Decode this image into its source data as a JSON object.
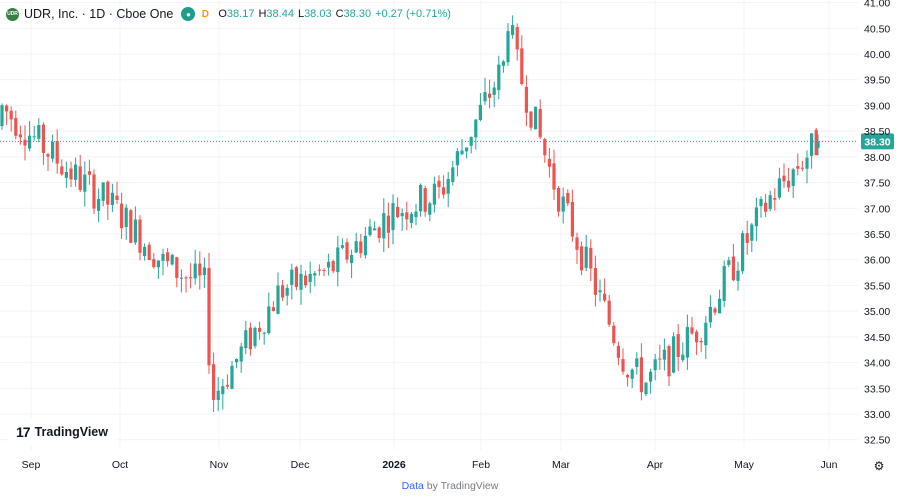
{
  "header": {
    "logo_text": "UDR",
    "title": "UDR, Inc. · 1D · Cboe One",
    "d_badge": "D",
    "o_label": "O",
    "o_value": "38.17",
    "h_label": "H",
    "h_value": "38.44",
    "l_label": "L",
    "l_value": "38.03",
    "c_label": "C",
    "c_value": "38.30",
    "change": "+0.27 (+0.71%)"
  },
  "brand": {
    "mark": "17",
    "name": "TradingView"
  },
  "footer": {
    "data_label": "Data",
    "by_label": "by TradingView"
  },
  "colors": {
    "up": "#26a69a",
    "down": "#ef5350",
    "last_price": "#26a69a",
    "text": "#131722",
    "grid": "#f0f3fa"
  },
  "icons": {
    "settings": "gear-icon",
    "visibility": "eye-icon"
  },
  "chart_data": {
    "type": "candlestick",
    "symbol": "UDR, Inc.",
    "interval": "1D",
    "exchange": "Cboe One",
    "last_price": 38.3,
    "last_price_label": "38.30",
    "y_ticks": [
      "32.50",
      "33.00",
      "33.50",
      "34.00",
      "34.50",
      "35.00",
      "35.50",
      "36.00",
      "36.50",
      "37.00",
      "37.50",
      "38.00",
      "38.50",
      "39.00",
      "39.50",
      "40.00",
      "40.50",
      "41.00"
    ],
    "ylim": [
      32.3,
      41.05
    ],
    "grid": true,
    "x_ticks": [
      "Sep",
      "Oct",
      "Nov",
      "Dec",
      "2026",
      "Feb",
      "Mar",
      "Apr",
      "May",
      "Jun"
    ],
    "monthly_waypoints": [
      {
        "period": "Aug 2025 (end)",
        "close": 39.0
      },
      {
        "period": "Sep 2025 (mid)",
        "close": 37.7
      },
      {
        "period": "Sep 2025 (end)",
        "close": 37.0
      },
      {
        "period": "Oct 2025 (mid)",
        "close": 35.9
      },
      {
        "period": "Oct 2025 (end)",
        "close": 35.5
      },
      {
        "period": "Nov 2025 (start low)",
        "close": 33.3
      },
      {
        "period": "Nov 2025 (end)",
        "close": 35.4
      },
      {
        "period": "Dec 2025 (mid)",
        "close": 35.8
      },
      {
        "period": "Dec 2025 (end)",
        "close": 36.9
      },
      {
        "period": "Jan 2026 (mid)",
        "close": 37.3
      },
      {
        "period": "Feb 2026 (peak)",
        "close": 40.1
      },
      {
        "period": "Feb 2026 (end)",
        "close": 37.6
      },
      {
        "period": "Mar 2026 (end)",
        "close": 34.0
      },
      {
        "period": "Apr 2026 (low)",
        "close": 33.6
      },
      {
        "period": "Apr 2026 (end)",
        "close": 34.7
      },
      {
        "period": "May 2026 (mid)",
        "close": 37.2
      },
      {
        "period": "May 2026 (last)",
        "close": 38.3
      }
    ],
    "last_bar": {
      "open": 38.17,
      "high": 38.44,
      "low": 38.03,
      "close": 38.3
    }
  }
}
